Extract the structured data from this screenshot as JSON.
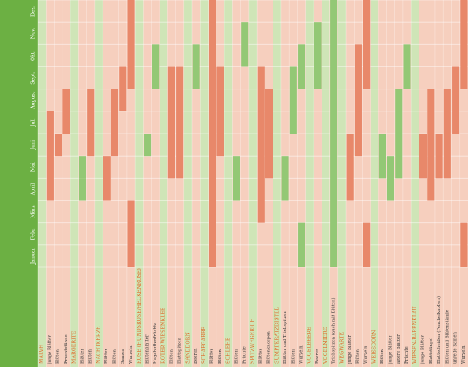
{
  "chart_data": {
    "type": "heatmap",
    "orientation": "rotated-90-ccw",
    "months": [
      "Januar",
      "Febr.",
      "März",
      "April",
      "Mai",
      "Juni",
      "Juli",
      "August",
      "Sept.",
      "Okt.",
      "Nov.",
      "Dez."
    ],
    "colors": {
      "green_bar": "#6cb043",
      "plant_bg": "#cfe5b7",
      "plant_line": "#c4dea8",
      "part_bg": "#f6cfbe",
      "part_line": "#f1c2ae",
      "active": "#e8886a",
      "active_green": "#93c875",
      "month_text": "#ffffff",
      "plant_text": "#e06c2e",
      "row_text": "#3c3c3c"
    },
    "rows": [
      {
        "label": "MALVE",
        "kind": "plant",
        "cells": []
      },
      {
        "label": "junge Blätter",
        "kind": "part",
        "cells": [
          [
            3,
            7,
            "red"
          ]
        ]
      },
      {
        "label": "Blüten",
        "kind": "part",
        "cells": [
          [
            5,
            6,
            "red"
          ]
        ]
      },
      {
        "label": "Fruchtstände",
        "kind": "part",
        "cells": [
          [
            6,
            8,
            "red"
          ]
        ]
      },
      {
        "label": "MARGERITE",
        "kind": "plant",
        "cells": []
      },
      {
        "label": "Blätter",
        "kind": "part",
        "cells": [
          [
            3,
            4,
            "green"
          ],
          [
            4,
            5,
            "green"
          ]
        ]
      },
      {
        "label": "Blüten",
        "kind": "part",
        "cells": [
          [
            5,
            6,
            "red"
          ],
          [
            6,
            7,
            "red"
          ],
          [
            7,
            8,
            "red"
          ]
        ]
      },
      {
        "label": "NACHTKERZE",
        "kind": "plant",
        "cells": []
      },
      {
        "label": "Blätter",
        "kind": "part",
        "cells": [
          [
            3,
            5,
            "red"
          ]
        ]
      },
      {
        "label": "Blüten",
        "kind": "part",
        "cells": [
          [
            5,
            8,
            "red"
          ]
        ]
      },
      {
        "label": "Samen",
        "kind": "part",
        "cells": [
          [
            7,
            9,
            "red"
          ]
        ]
      },
      {
        "label": "Wurzeln",
        "kind": "part",
        "cells": [
          [
            0,
            3,
            "red"
          ],
          [
            8,
            12,
            "red"
          ]
        ]
      },
      {
        "label": "ROSE (HUNDSROSE/HECKENROSE)",
        "kind": "plant",
        "cells": []
      },
      {
        "label": "Blütenblätter",
        "kind": "part",
        "cells": [
          [
            5,
            6,
            "green"
          ]
        ]
      },
      {
        "label": "Hagebuttenfrüchte",
        "kind": "part",
        "cells": [
          [
            8,
            10,
            "green"
          ]
        ]
      },
      {
        "label": "ROTER WIESENKLEE",
        "kind": "plant",
        "cells": []
      },
      {
        "label": "Blüten",
        "kind": "part",
        "cells": [
          [
            4,
            9,
            "red"
          ]
        ]
      },
      {
        "label": "Blattspitzen",
        "kind": "part",
        "cells": [
          [
            4,
            9,
            "red"
          ]
        ]
      },
      {
        "label": "SANDDORN",
        "kind": "plant",
        "cells": []
      },
      {
        "label": "Beeren",
        "kind": "part",
        "cells": [
          [
            8,
            10,
            "green"
          ]
        ]
      },
      {
        "label": "SCHAFGARBE",
        "kind": "plant",
        "cells": []
      },
      {
        "label": "Blätter",
        "kind": "part",
        "cells": [
          [
            0,
            12,
            "red"
          ]
        ]
      },
      {
        "label": "Blüten",
        "kind": "part",
        "cells": [
          [
            5,
            9,
            "red"
          ]
        ]
      },
      {
        "label": "SCHLEHE",
        "kind": "plant",
        "cells": []
      },
      {
        "label": "Blüten",
        "kind": "part",
        "cells": [
          [
            3,
            5,
            "green"
          ]
        ]
      },
      {
        "label": "Früchte",
        "kind": "part",
        "cells": [
          [
            9,
            11,
            "green"
          ]
        ]
      },
      {
        "label": "SPITZWEGERICH",
        "kind": "plant",
        "cells": []
      },
      {
        "label": "Blätter",
        "kind": "part",
        "cells": [
          [
            2,
            9,
            "red"
          ]
        ]
      },
      {
        "label": "Blütenknospen",
        "kind": "part",
        "cells": [
          [
            4,
            8,
            "red"
          ]
        ]
      },
      {
        "label": "SUMPFKRATZDISTEL",
        "kind": "plant",
        "cells": []
      },
      {
        "label": "Blätter und Triebspitzen",
        "kind": "part",
        "cells": [
          [
            3,
            5,
            "green"
          ]
        ]
      },
      {
        "label": "Blüten",
        "kind": "part",
        "cells": [
          [
            6,
            9,
            "green"
          ]
        ]
      },
      {
        "label": "Wurzeln",
        "kind": "part",
        "cells": [
          [
            0,
            2,
            "green"
          ],
          [
            8,
            10,
            "green"
          ]
        ]
      },
      {
        "label": "VOGELBEERE",
        "kind": "plant",
        "cells": []
      },
      {
        "label": "Beeren",
        "kind": "part",
        "cells": [
          [
            8,
            11,
            "green"
          ]
        ]
      },
      {
        "label": "VOGELMIERE",
        "kind": "plant",
        "cells": []
      },
      {
        "label": "Triebspitzen (auch mit Blüten)",
        "kind": "part",
        "cells": [
          [
            0,
            12,
            "green"
          ]
        ]
      },
      {
        "label": "WEGWARTE",
        "kind": "plant",
        "cells": []
      },
      {
        "label": "junge Blätter",
        "kind": "part",
        "cells": [
          [
            3,
            6,
            "red"
          ]
        ]
      },
      {
        "label": "Blüten",
        "kind": "part",
        "cells": [
          [
            5,
            10,
            "red"
          ]
        ]
      },
      {
        "label": "Wurzeln",
        "kind": "part",
        "cells": [
          [
            0,
            2,
            "red"
          ],
          [
            8,
            12,
            "red"
          ]
        ]
      },
      {
        "label": "WEISSDORN",
        "kind": "plant",
        "cells": []
      },
      {
        "label": "Blüten",
        "kind": "part",
        "cells": [
          [
            4,
            6,
            "green"
          ]
        ]
      },
      {
        "label": "junge Blätter",
        "kind": "part",
        "cells": [
          [
            3,
            5,
            "green"
          ]
        ]
      },
      {
        "label": "ältere Blätter",
        "kind": "part",
        "cells": [
          [
            4,
            8,
            "green"
          ]
        ]
      },
      {
        "label": "Früchte",
        "kind": "part",
        "cells": [
          [
            8,
            10,
            "green"
          ]
        ]
      },
      {
        "label": "WIESEN-BÄRENKLAU",
        "kind": "plant",
        "cells": []
      },
      {
        "label": "junge Blätter",
        "kind": "part",
        "cells": [
          [
            4,
            6,
            "red"
          ]
        ]
      },
      {
        "label": "Blattstängel",
        "kind": "part",
        "cells": [
          [
            3,
            8,
            "red"
          ]
        ]
      },
      {
        "label": "Blattscheiden (Fenchelknollen)",
        "kind": "part",
        "cells": [
          [
            4,
            6,
            "red"
          ]
        ]
      },
      {
        "label": "Blüten und Blütenstände",
        "kind": "part",
        "cells": [
          [
            4,
            8,
            "red"
          ]
        ]
      },
      {
        "label": "unreife Samen",
        "kind": "part",
        "cells": [
          [
            6,
            9,
            "red"
          ]
        ]
      },
      {
        "label": "Wurzeln",
        "kind": "part",
        "cells": [
          [
            0,
            2,
            "red"
          ],
          [
            8,
            12,
            "red"
          ]
        ]
      }
    ]
  }
}
